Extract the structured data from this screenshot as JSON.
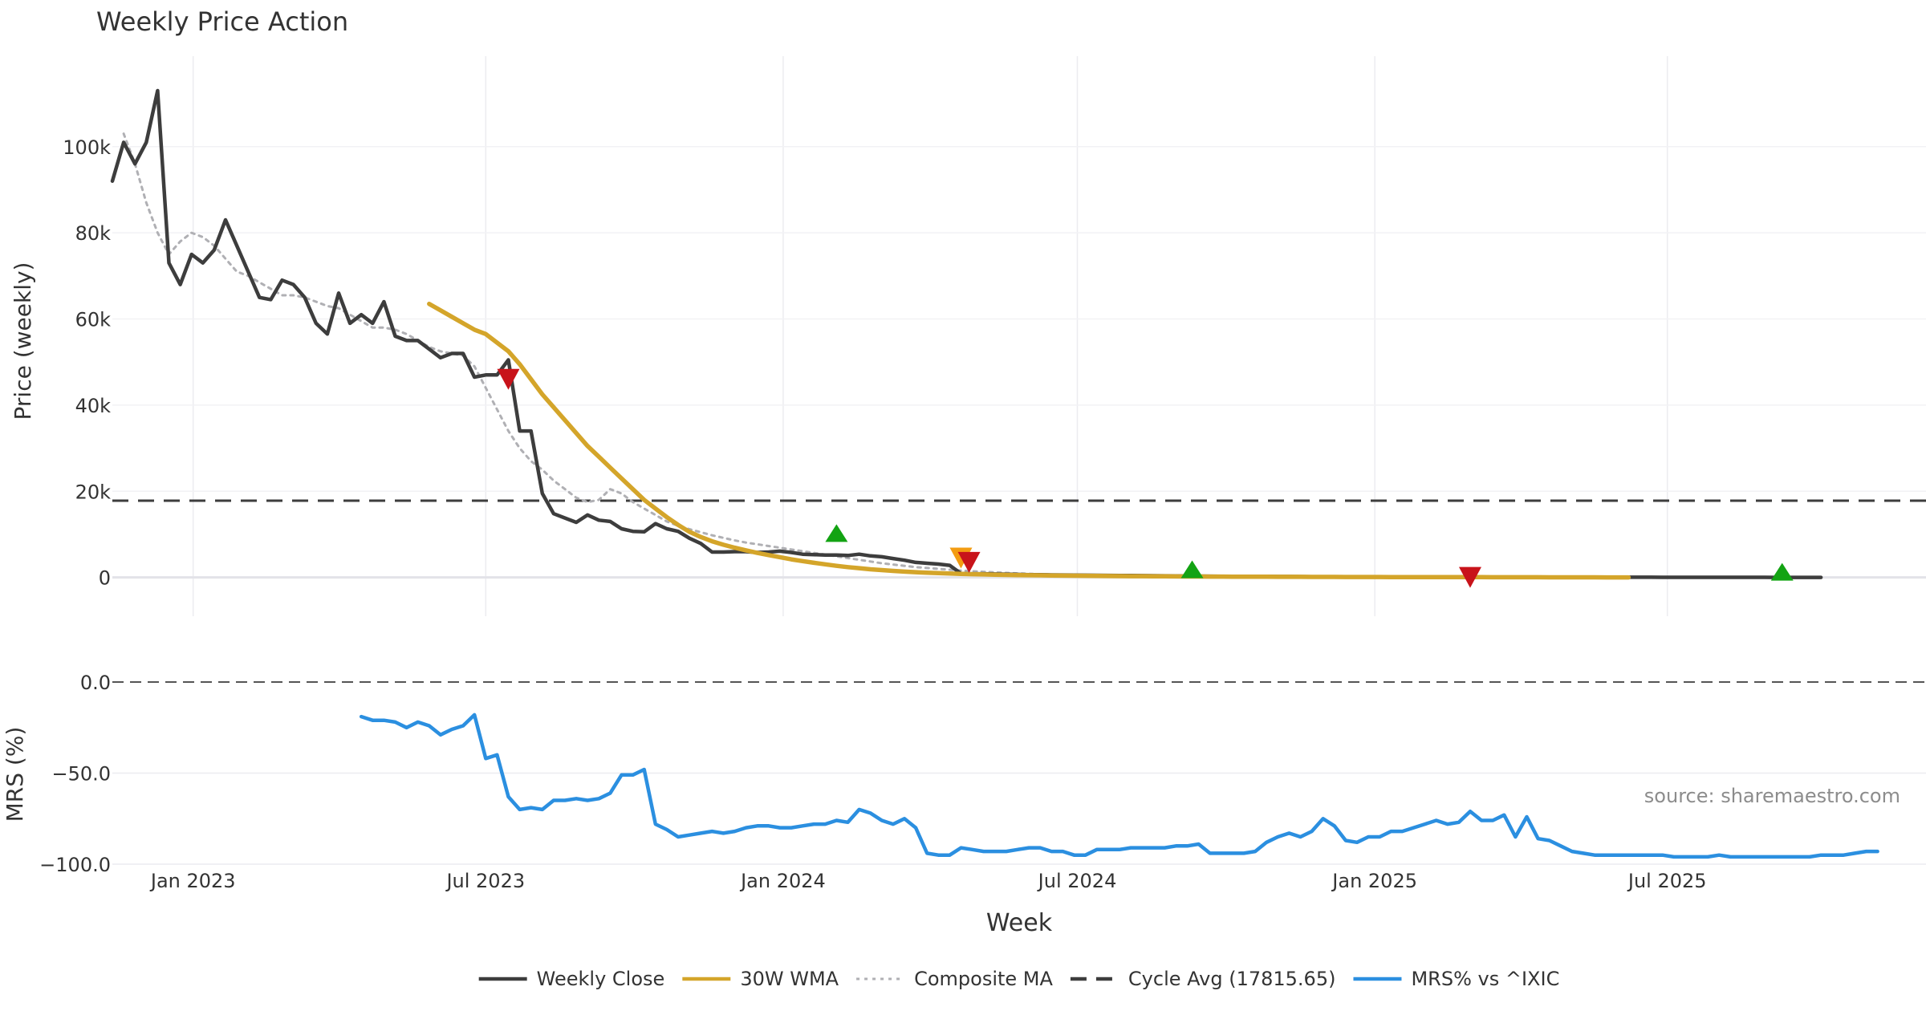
{
  "chart_data": {
    "type": "line",
    "title": "Weekly Price Action",
    "source": "source: sharemaestro.com",
    "xlabel": "Week",
    "x_ticks": [
      {
        "date": "2023-01-01",
        "label": "Jan 2023"
      },
      {
        "date": "2023-07-01",
        "label": "Jul 2023"
      },
      {
        "date": "2024-01-01",
        "label": "Jan 2024"
      },
      {
        "date": "2024-07-01",
        "label": "Jul 2024"
      },
      {
        "date": "2025-01-01",
        "label": "Jan 2025"
      },
      {
        "date": "2025-07-01",
        "label": "Jul 2025"
      }
    ],
    "xlim": [
      "2022-11-12",
      "2025-12-08"
    ],
    "price_panel": {
      "ylabel": "Price (weekly)",
      "ylim": [
        -9000,
        121000
      ],
      "y_ticks": [
        {
          "value": 0,
          "label": "0"
        },
        {
          "value": 20000,
          "label": "20k"
        },
        {
          "value": 40000,
          "label": "40k"
        },
        {
          "value": 60000,
          "label": "60k"
        },
        {
          "value": 80000,
          "label": "80k"
        },
        {
          "value": 100000,
          "label": "100k"
        }
      ],
      "cycle_avg": 17815.65
    },
    "mrs_panel": {
      "ylabel": "MRS (%)",
      "ylim": [
        -100,
        0
      ],
      "y_ticks": [
        {
          "value": 0,
          "label": "0.0"
        },
        {
          "value": -50,
          "label": "−50.0"
        },
        {
          "value": -100,
          "label": "−100.0"
        }
      ]
    },
    "series": [
      {
        "name": "Weekly Close",
        "color": "#3d3d3d",
        "panel": "price",
        "start": "2022-11-12",
        "values": [
          92000,
          101000,
          96000,
          101000,
          113000,
          73000,
          68000,
          75000,
          73000,
          76000,
          83000,
          77000,
          71000,
          65000,
          64500,
          69000,
          68000,
          65000,
          59000,
          56500,
          66000,
          59000,
          61000,
          59000,
          64000,
          56000,
          55000,
          55000,
          53000,
          51000,
          52000,
          52000,
          46500,
          47000,
          47000,
          50500,
          34000,
          34000,
          19500,
          14800,
          13800,
          12800,
          14500,
          13300,
          13000,
          11300,
          10700,
          10600,
          12500,
          11300,
          10700,
          9100,
          7900,
          5900,
          5900,
          6000,
          6000,
          5800,
          5900,
          6100,
          5800,
          5400,
          5300,
          5200,
          5200,
          5100,
          5400,
          5000,
          4800,
          4400,
          4000,
          3500,
          3300,
          3100,
          2800,
          900,
          850,
          850,
          800,
          750,
          700,
          650,
          620,
          600,
          580,
          550,
          520,
          500,
          480,
          460,
          440,
          420,
          400,
          380,
          360,
          340,
          320,
          300,
          280,
          260,
          250,
          240,
          230,
          220,
          210,
          200,
          190,
          180,
          170,
          160,
          150,
          145,
          140,
          135,
          130,
          125,
          120,
          115,
          110,
          105,
          100,
          95,
          90,
          85,
          80,
          75,
          70,
          65,
          60,
          58,
          56,
          54,
          52,
          50,
          48,
          46,
          44,
          42,
          40,
          38,
          36,
          34,
          32,
          30,
          28,
          26,
          24,
          22,
          20,
          18,
          16,
          14
        ]
      },
      {
        "name": "30W WMA",
        "color": "#d4a52a",
        "panel": "price",
        "start": "2023-05-27",
        "values": [
          63500,
          62000,
          60500,
          59000,
          57500,
          56500,
          54500,
          52500,
          49500,
          46000,
          42500,
          39500,
          36500,
          33500,
          30500,
          28000,
          25500,
          23000,
          20500,
          18000,
          16000,
          14000,
          12200,
          10600,
          9400,
          8400,
          7600,
          6900,
          6300,
          5700,
          5200,
          4700,
          4200,
          3800,
          3400,
          3050,
          2700,
          2400,
          2150,
          1900,
          1700,
          1520,
          1360,
          1220,
          1100,
          1000,
          910,
          830,
          760,
          700,
          650,
          600,
          560,
          520,
          490,
          460,
          430,
          400,
          380,
          360,
          340,
          320,
          300,
          285,
          270,
          255,
          240,
          228,
          216,
          205,
          195,
          185,
          176,
          168,
          160,
          152,
          145,
          138,
          132,
          126,
          120,
          115,
          110,
          105,
          100,
          96,
          92,
          88,
          84,
          80,
          76,
          72,
          68,
          64,
          60,
          56,
          52,
          48,
          44,
          40,
          36,
          32,
          28,
          24,
          20,
          16,
          12
        ]
      },
      {
        "name": "Composite MA",
        "color": "#b0b0b4",
        "panel": "price",
        "start": "2022-11-19",
        "values": [
          103000,
          96000,
          87000,
          80000,
          75000,
          78000,
          80000,
          79000,
          77000,
          74000,
          71000,
          70000,
          68500,
          67000,
          65500,
          65500,
          65000,
          64000,
          63000,
          62500,
          61000,
          59500,
          58000,
          58000,
          57500,
          56500,
          55000,
          53500,
          52500,
          52000,
          51500,
          49000,
          44000,
          39000,
          34000,
          30000,
          27000,
          25000,
          22500,
          20500,
          18500,
          17500,
          18000,
          20500,
          19500,
          17500,
          16000,
          14500,
          13000,
          12000,
          11200,
          10500,
          9800,
          9200,
          8600,
          8100,
          7700,
          7300,
          6900,
          6500,
          6100,
          5700,
          5300,
          4900,
          4500,
          4100,
          3700,
          3300,
          3000,
          2700,
          2400,
          2200,
          2000,
          1800,
          1600,
          1450,
          1300,
          1180,
          1060,
          950,
          850,
          760,
          690,
          620,
          560,
          500,
          450,
          410,
          370,
          340,
          310,
          280,
          255,
          230,
          210,
          190,
          170,
          155,
          140,
          128,
          116,
          105,
          95,
          86,
          78,
          70,
          62,
          55,
          48,
          42,
          36,
          30,
          24,
          18,
          12
        ]
      },
      {
        "name": "Cycle Avg (17815.65)",
        "color": "#3d3d3d",
        "panel": "price",
        "constant": 17815.65
      },
      {
        "name": "MRS% vs ^IXIC",
        "color": "#2b8fe0",
        "panel": "mrs",
        "start": "2023-04-15",
        "values": [
          -19,
          -21,
          -21,
          -22,
          -25,
          -22,
          -24,
          -29,
          -26,
          -24,
          -18,
          -42,
          -40,
          -63,
          -70,
          -69,
          -70,
          -65,
          -65,
          -64,
          -65,
          -64,
          -61,
          -51,
          -51,
          -48,
          -78,
          -81,
          -85,
          -84,
          -83,
          -82,
          -83,
          -82,
          -80,
          -79,
          -79,
          -80,
          -80,
          -79,
          -78,
          -78,
          -76,
          -77,
          -70,
          -72,
          -76,
          -78,
          -75,
          -80,
          -94,
          -95,
          -95,
          -91,
          -92,
          -93,
          -93,
          -93,
          -92,
          -91,
          -91,
          -93,
          -93,
          -95,
          -95,
          -92,
          -92,
          -92,
          -91,
          -91,
          -91,
          -91,
          -90,
          -90,
          -89,
          -94,
          -94,
          -94,
          -94,
          -93,
          -88,
          -85,
          -83,
          -85,
          -82,
          -75,
          -79,
          -87,
          -88,
          -85,
          -85,
          -82,
          -82,
          -80,
          -78,
          -76,
          -78,
          -77,
          -71,
          -76,
          -76,
          -73,
          -85,
          -74,
          -86,
          -87,
          -90,
          -93,
          -94,
          -95,
          -95,
          -95,
          -95,
          -95,
          -95,
          -95,
          -96,
          -96,
          -96,
          -96,
          -95,
          -96,
          -96,
          -96,
          -96,
          -96,
          -96,
          -96,
          -96,
          -95,
          -95,
          -95,
          -94,
          -93,
          -93
        ]
      }
    ],
    "signals": [
      {
        "date": "2023-07-15",
        "value": 46000,
        "type": "sell",
        "color": "#c8131a"
      },
      {
        "date": "2024-02-03",
        "value": 9000,
        "type": "buy",
        "color": "#13a313"
      },
      {
        "date": "2024-04-20",
        "value": 4500,
        "type": "sell",
        "color": "#f39c12"
      },
      {
        "date": "2024-04-25",
        "value": 3500,
        "type": "sell",
        "color": "#c8131a"
      },
      {
        "date": "2024-09-10",
        "value": 600,
        "type": "buy",
        "color": "#13a313"
      },
      {
        "date": "2025-03-01",
        "value": 0,
        "type": "sell",
        "color": "#c8131a"
      },
      {
        "date": "2025-09-10",
        "value": 0,
        "type": "buy",
        "color": "#13a313"
      }
    ]
  },
  "legend": [
    {
      "label": "Weekly Close",
      "color": "#3d3d3d",
      "style": "solid"
    },
    {
      "label": "30W WMA",
      "color": "#d4a52a",
      "style": "solid"
    },
    {
      "label": "Composite MA",
      "color": "#b0b0b4",
      "style": "dotted"
    },
    {
      "label": "Cycle Avg (17815.65)",
      "color": "#3d3d3d",
      "style": "dashed"
    },
    {
      "label": "MRS% vs ^IXIC",
      "color": "#2b8fe0",
      "style": "solid"
    }
  ]
}
